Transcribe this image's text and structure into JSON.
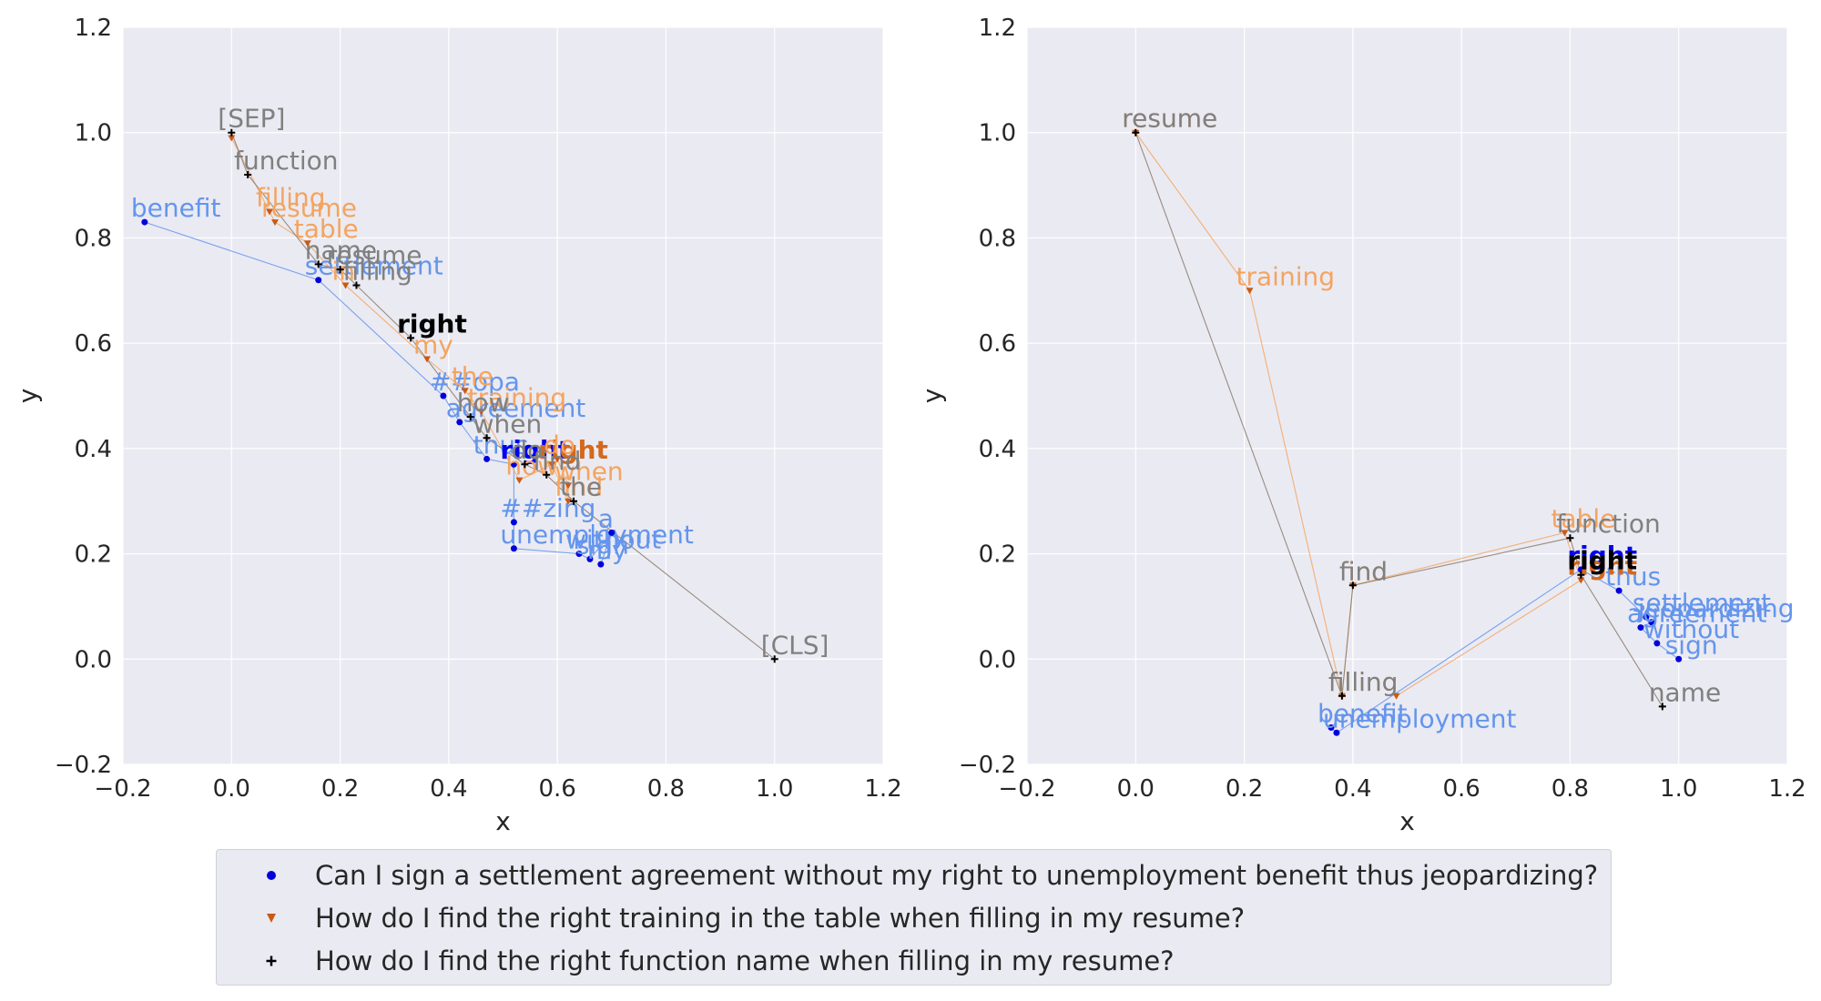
{
  "chart_data": [
    {
      "type": "scatter",
      "xlabel": "x",
      "ylabel": "y",
      "xlim": [
        -0.2,
        1.2
      ],
      "ylim": [
        -0.2,
        1.2
      ],
      "xticks": [
        "−0.2",
        "0.0",
        "0.2",
        "0.4",
        "0.6",
        "0.8",
        "1.0",
        "1.2"
      ],
      "yticks": [
        "−0.2",
        "0.0",
        "0.2",
        "0.4",
        "0.6",
        "0.8",
        "1.0",
        "1.2"
      ],
      "grid": true,
      "series": [
        {
          "name": "q1",
          "points": [
            {
              "x": -0.16,
              "y": 0.83,
              "label": "benefit"
            },
            {
              "x": 0.16,
              "y": 0.72,
              "label": "settlement"
            },
            {
              "x": 0.39,
              "y": 0.5,
              "label": "##opa"
            },
            {
              "x": 0.42,
              "y": 0.45,
              "label": "agreement"
            },
            {
              "x": 0.47,
              "y": 0.38,
              "label": "thus"
            },
            {
              "x": 0.52,
              "y": 0.37,
              "label": "right",
              "bold": true
            },
            {
              "x": 0.52,
              "y": 0.26,
              "label": "##zing"
            },
            {
              "x": 0.52,
              "y": 0.21,
              "label": "unemployment"
            },
            {
              "x": 0.64,
              "y": 0.2,
              "label": "without"
            },
            {
              "x": 0.66,
              "y": 0.19,
              "label": "sign"
            },
            {
              "x": 0.7,
              "y": 0.24,
              "label": "a"
            },
            {
              "x": 0.68,
              "y": 0.18,
              "label": "my"
            }
          ]
        },
        {
          "name": "q2",
          "points": [
            {
              "x": 0.0,
              "y": 0.99,
              "label": ""
            },
            {
              "x": 0.07,
              "y": 0.85,
              "label": "filling"
            },
            {
              "x": 0.08,
              "y": 0.83,
              "label": "resume"
            },
            {
              "x": 0.14,
              "y": 0.79,
              "label": "table"
            },
            {
              "x": 0.21,
              "y": 0.71,
              "label": "in"
            },
            {
              "x": 0.36,
              "y": 0.57,
              "label": "my"
            },
            {
              "x": 0.43,
              "y": 0.51,
              "label": "the"
            },
            {
              "x": 0.46,
              "y": 0.47,
              "label": "training"
            },
            {
              "x": 0.53,
              "y": 0.34,
              "label": "how"
            },
            {
              "x": 0.59,
              "y": 0.37,
              "label": "right",
              "bold": true
            },
            {
              "x": 0.62,
              "y": 0.3,
              "label": "find"
            },
            {
              "x": 0.62,
              "y": 0.33,
              "label": "when"
            },
            {
              "x": 0.6,
              "y": 0.38,
              "label": "do"
            }
          ]
        },
        {
          "name": "q3",
          "points": [
            {
              "x": 0.0,
              "y": 1.0,
              "label": "[SEP]"
            },
            {
              "x": 0.03,
              "y": 0.92,
              "label": "function"
            },
            {
              "x": 0.16,
              "y": 0.75,
              "label": "name"
            },
            {
              "x": 0.2,
              "y": 0.74,
              "label": "resume"
            },
            {
              "x": 0.23,
              "y": 0.71,
              "label": "filling"
            },
            {
              "x": 0.33,
              "y": 0.61,
              "label": "right",
              "bold": true
            },
            {
              "x": 0.44,
              "y": 0.46,
              "label": "how"
            },
            {
              "x": 0.47,
              "y": 0.42,
              "label": "when"
            },
            {
              "x": 0.54,
              "y": 0.37,
              "label": "do"
            },
            {
              "x": 0.58,
              "y": 0.35,
              "label": "find"
            },
            {
              "x": 0.63,
              "y": 0.3,
              "label": "the"
            },
            {
              "x": 1.0,
              "y": 0.0,
              "label": "[CLS]"
            }
          ]
        }
      ]
    },
    {
      "type": "scatter",
      "xlabel": "x",
      "ylabel": "y",
      "xlim": [
        -0.2,
        1.2
      ],
      "ylim": [
        -0.2,
        1.2
      ],
      "xticks": [
        "−0.2",
        "0.0",
        "0.2",
        "0.4",
        "0.6",
        "0.8",
        "1.0",
        "1.2"
      ],
      "yticks": [
        "−0.2",
        "0.0",
        "0.2",
        "0.4",
        "0.6",
        "0.8",
        "1.0",
        "1.2"
      ],
      "grid": true,
      "series": [
        {
          "name": "q1",
          "points": [
            {
              "x": 0.36,
              "y": -0.13,
              "label": "benefit"
            },
            {
              "x": 0.37,
              "y": -0.14,
              "label": "unemployment"
            },
            {
              "x": 0.82,
              "y": 0.17,
              "label": "right",
              "bold": true
            },
            {
              "x": 0.89,
              "y": 0.13,
              "label": "thus"
            },
            {
              "x": 0.94,
              "y": 0.08,
              "label": "settlement"
            },
            {
              "x": 0.95,
              "y": 0.07,
              "label": "jeopardizing"
            },
            {
              "x": 0.93,
              "y": 0.06,
              "label": "agreement"
            },
            {
              "x": 0.96,
              "y": 0.03,
              "label": "without"
            },
            {
              "x": 1.0,
              "y": 0.0,
              "label": "sign"
            }
          ]
        },
        {
          "name": "q2",
          "points": [
            {
              "x": 0.0,
              "y": 1.0,
              "label": "resume"
            },
            {
              "x": 0.21,
              "y": 0.7,
              "label": "training"
            },
            {
              "x": 0.38,
              "y": -0.07,
              "label": "filling"
            },
            {
              "x": 0.4,
              "y": 0.14,
              "label": "find"
            },
            {
              "x": 0.79,
              "y": 0.24,
              "label": "table"
            },
            {
              "x": 0.82,
              "y": 0.15,
              "label": "right",
              "bold": true
            },
            {
              "x": 0.48,
              "y": -0.07,
              "label": ""
            }
          ]
        },
        {
          "name": "q3",
          "points": [
            {
              "x": 0.0,
              "y": 1.0,
              "label": "resume"
            },
            {
              "x": 0.38,
              "y": -0.07,
              "label": "filling"
            },
            {
              "x": 0.4,
              "y": 0.14,
              "label": "find"
            },
            {
              "x": 0.8,
              "y": 0.23,
              "label": "function"
            },
            {
              "x": 0.82,
              "y": 0.16,
              "label": "right",
              "bold": true
            },
            {
              "x": 0.97,
              "y": -0.09,
              "label": "name"
            }
          ]
        }
      ]
    }
  ],
  "legend": {
    "placement": "bottom-center",
    "entries": [
      {
        "series": "q1",
        "marker": "circle",
        "color": "#0000dd",
        "label": "Can I sign a settlement agreement without my right to unemployment benefit thus jeopardizing?"
      },
      {
        "series": "q2",
        "marker": "triangle-down",
        "color": "#c85a14",
        "label": "How do I find the right training in the table when filling in my resume?"
      },
      {
        "series": "q3",
        "marker": "plus",
        "color": "#000000",
        "label": "How do I find the right function name when filling in my resume?"
      }
    ]
  },
  "colors": {
    "q1_marker": "#0000dd",
    "q1_text": "#6495ed",
    "q1_bold": "#0000ee",
    "q2_marker": "#c85a14",
    "q2_text": "#f4a460",
    "q2_bold": "#d2691e",
    "q3_marker": "#000000",
    "q3_text": "#808080",
    "q3_bold": "#000000",
    "q1_line": "#6495ed",
    "q2_line": "#f4a460",
    "q3_line": "#8b7b6b",
    "axes_bg": "#eaeaf2",
    "grid": "#ffffff",
    "text": "#262626"
  }
}
